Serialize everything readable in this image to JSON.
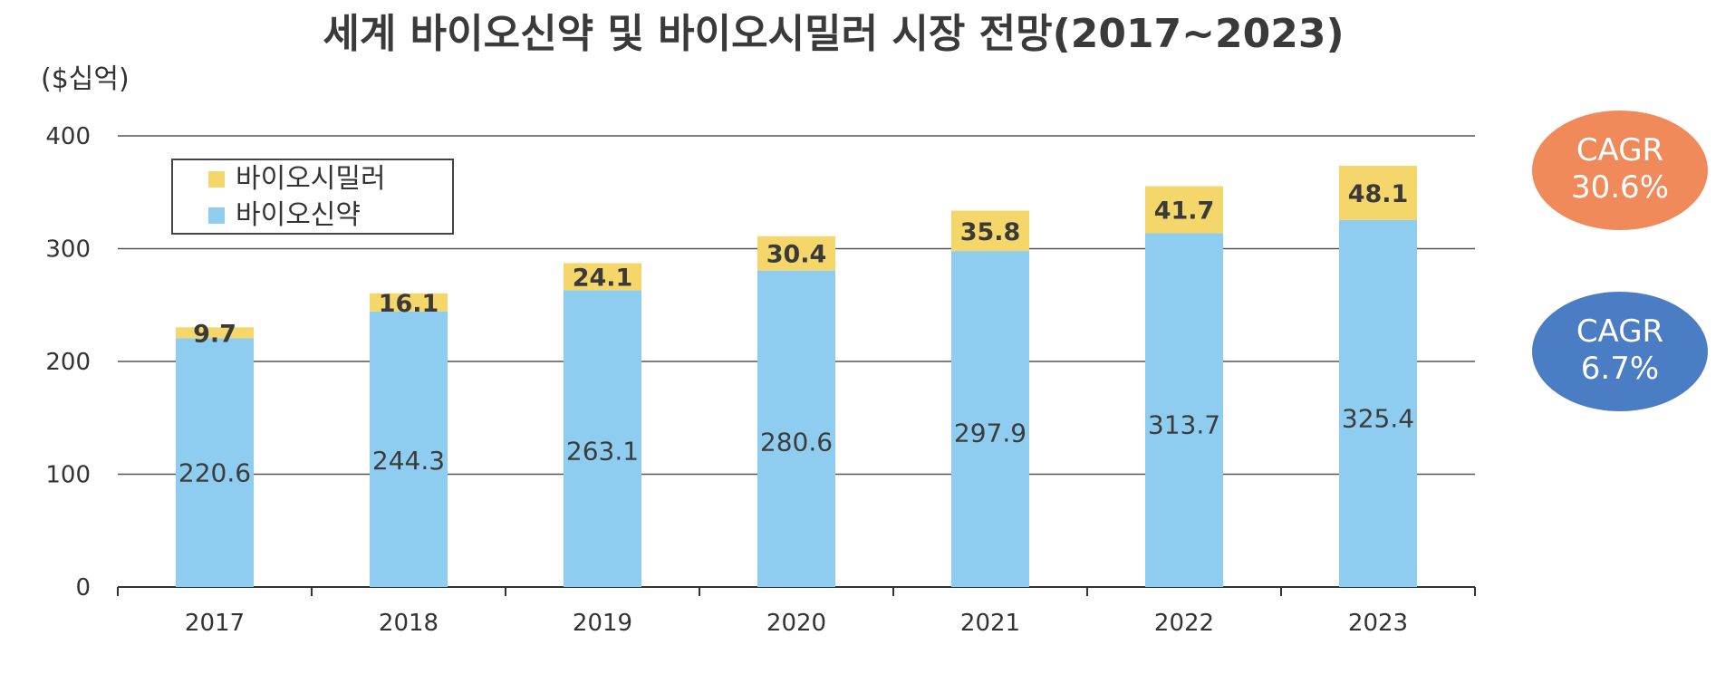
{
  "chart_data": {
    "type": "bar",
    "stacked": true,
    "title": "세계 바이오신약 및 바이오시밀러 시장 전망(2017~2023)",
    "unit_label": "($십억)",
    "categories": [
      "2017",
      "2018",
      "2019",
      "2020",
      "2021",
      "2022",
      "2023"
    ],
    "series": [
      {
        "name": "바이오신약",
        "color": "#8ecdf0",
        "values": [
          220.6,
          244.3,
          263.1,
          280.6,
          297.9,
          313.7,
          325.4
        ]
      },
      {
        "name": "바이오시밀러",
        "color": "#f5d66a",
        "values": [
          9.7,
          16.1,
          24.1,
          30.4,
          35.8,
          41.7,
          48.1
        ]
      }
    ],
    "value_labels": {
      "바이오신약": [
        "220.6",
        "244.3",
        "263.1",
        "280.6",
        "297.9",
        "313.7",
        "325.4"
      ],
      "바이오시밀러": [
        "9.7",
        "16.1",
        "24.1",
        "30.4",
        "35.8",
        "41.7",
        "48.1"
      ]
    },
    "ylim": [
      0,
      400
    ],
    "yticks": [
      "0",
      "100",
      "200",
      "300",
      "400"
    ],
    "grid": true,
    "legend_position": "top-left",
    "legend": [
      {
        "label": "바이오시밀러",
        "color": "#f5d66a"
      },
      {
        "label": "바이오신약",
        "color": "#8ecdf0"
      }
    ],
    "annotations": [
      {
        "series": "바이오시밀러",
        "line1": "CAGR",
        "line2": "30.6%",
        "color": "#f08a5a"
      },
      {
        "series": "바이오신약",
        "line1": "CAGR",
        "line2": "6.7%",
        "color": "#4a7dc4"
      }
    ]
  }
}
